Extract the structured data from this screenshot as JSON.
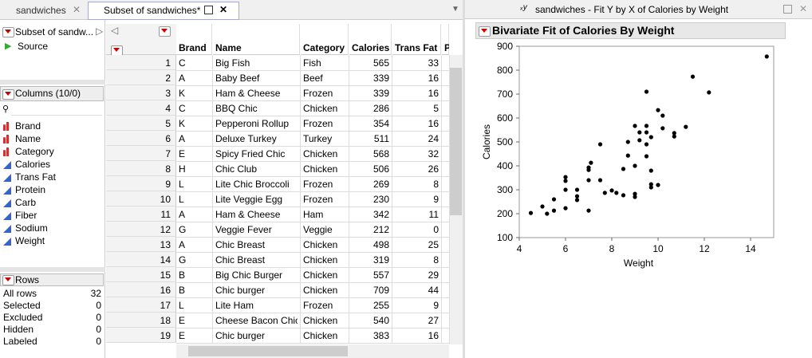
{
  "tabs": [
    "sandwiches",
    "Subset of sandwiches*"
  ],
  "table_panel": {
    "name": "Subset of sandw...",
    "source": "Source"
  },
  "columns_panel": {
    "title": "Columns (10/0)",
    "columns": [
      "Brand",
      "Name",
      "Category",
      "Calories",
      "Trans Fat",
      "Protein",
      "Carb",
      "Fiber",
      "Sodium",
      "Weight"
    ]
  },
  "rows_panel": {
    "title": "Rows",
    "items": [
      {
        "label": "All rows",
        "value": 32
      },
      {
        "label": "Selected",
        "value": 0
      },
      {
        "label": "Excluded",
        "value": 0
      },
      {
        "label": "Hidden",
        "value": 0
      },
      {
        "label": "Labeled",
        "value": 0
      }
    ]
  },
  "table": {
    "headers": [
      "Brand",
      "Name",
      "Category",
      "Calories",
      "Trans Fat",
      "P"
    ],
    "rows": [
      [
        1,
        "C",
        "Big Fish",
        "Fish",
        565,
        33
      ],
      [
        2,
        "A",
        "Baby Beef",
        "Beef",
        339,
        16
      ],
      [
        3,
        "K",
        "Ham & Cheese",
        "Frozen",
        339,
        16
      ],
      [
        4,
        "C",
        "BBQ Chic",
        "Chicken",
        286,
        5
      ],
      [
        5,
        "K",
        "Pepperoni Rollup",
        "Frozen",
        354,
        16
      ],
      [
        6,
        "A",
        "Deluxe Turkey",
        "Turkey",
        511,
        24
      ],
      [
        7,
        "E",
        "Spicy Fried Chic",
        "Chicken",
        568,
        32
      ],
      [
        8,
        "H",
        "Chic Club",
        "Chicken",
        506,
        26
      ],
      [
        9,
        "L",
        "Lite Chic Broccoli",
        "Frozen",
        269,
        8
      ],
      [
        10,
        "L",
        "Lite Veggie Egg",
        "Frozen",
        230,
        9
      ],
      [
        11,
        "A",
        "Ham & Cheese",
        "Ham",
        342,
        11
      ],
      [
        12,
        "G",
        "Veggie Fever",
        "Veggie",
        212,
        0
      ],
      [
        13,
        "A",
        "Chic Breast",
        "Chicken",
        498,
        25
      ],
      [
        14,
        "G",
        "Chic Breast",
        "Chicken",
        319,
        8
      ],
      [
        15,
        "B",
        "Big Chic Burger",
        "Chicken",
        557,
        29
      ],
      [
        16,
        "B",
        "Chic burger",
        "Chicken",
        709,
        44
      ],
      [
        17,
        "L",
        "Lite Ham",
        "Frozen",
        255,
        9
      ],
      [
        18,
        "E",
        "Cheese Bacon Chic",
        "Chicken",
        540,
        27
      ],
      [
        19,
        "E",
        "Chic burger",
        "Chicken",
        383,
        16
      ]
    ]
  },
  "report": {
    "window_title": "sandwiches - Fit Y by X of Calories by Weight",
    "title": "Bivariate Fit of Calories By Weight"
  },
  "chart_data": {
    "type": "scatter",
    "x_label": "Weight",
    "y_label": "Calories",
    "color": "#000000",
    "x": [
      4.5,
      5.0,
      5.2,
      5.5,
      5.5,
      6.0,
      6.0,
      6.0,
      6.0,
      6.5,
      6.5,
      6.5,
      7.0,
      7.0,
      7.0,
      7.0,
      7.1,
      7.5,
      7.5,
      7.7,
      8.0,
      8.2,
      8.5,
      8.5,
      8.7,
      8.7,
      9.0,
      9.0,
      9.0,
      9.0,
      9.2,
      9.2,
      9.5,
      9.5,
      9.5,
      9.5,
      9.5,
      9.7,
      9.7,
      9.7,
      9.7,
      10.0,
      10.0,
      10.2,
      10.2,
      10.7,
      10.7,
      11.2,
      11.5,
      12.2,
      14.7
    ],
    "values": [
      203,
      230,
      200,
      260,
      213,
      353,
      337,
      300,
      223,
      300,
      273,
      257,
      213,
      340,
      383,
      393,
      413,
      490,
      340,
      287,
      297,
      287,
      277,
      387,
      500,
      443,
      567,
      400,
      283,
      270,
      540,
      507,
      710,
      567,
      540,
      490,
      440,
      520,
      380,
      323,
      310,
      320,
      633,
      610,
      557,
      537,
      523,
      563,
      773,
      707,
      857
    ],
    "xlim": [
      4,
      15
    ],
    "ylim": [
      100,
      900
    ],
    "xticks": [
      4,
      6,
      8,
      10,
      12,
      14
    ],
    "yticks": [
      100,
      200,
      300,
      400,
      500,
      600,
      700,
      800,
      900
    ]
  }
}
